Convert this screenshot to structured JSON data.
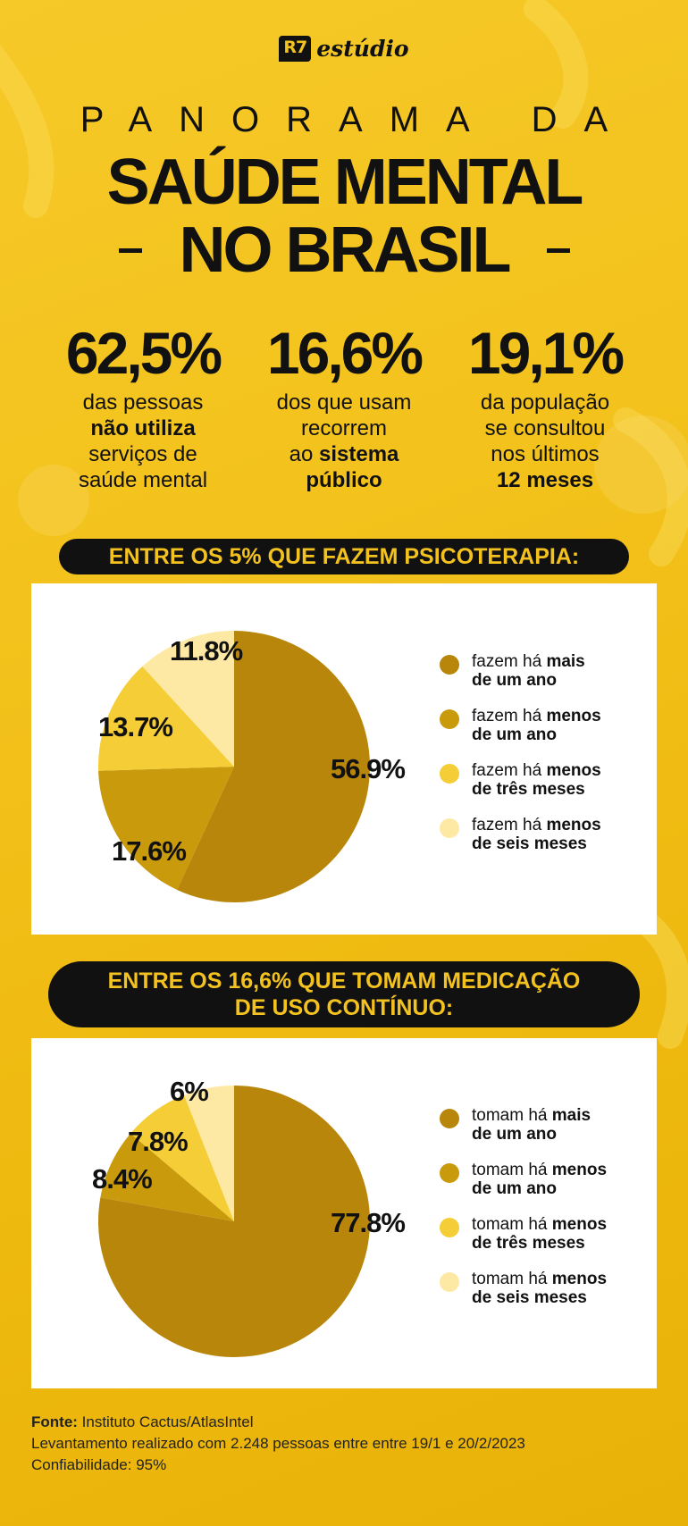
{
  "logo": {
    "badge": "R7",
    "text": "estúdio"
  },
  "title": {
    "line1": "PANORAMA DA",
    "line2": "SAÚDE MENTAL",
    "line3": "NO BRASIL"
  },
  "stats": [
    {
      "value": "62,5%",
      "lines": [
        "das pessoas",
        "não utiliza",
        "serviços de",
        "saúde mental"
      ],
      "bold": [
        false,
        true,
        false,
        false
      ]
    },
    {
      "value": "16,6%",
      "lines": [
        "dos que usam",
        "recorrem",
        "ao ",
        "público"
      ],
      "bold": [
        false,
        false,
        false,
        true
      ],
      "bold_inline": "sistema"
    },
    {
      "value": "19,1%",
      "lines": [
        "da população",
        "se consultou",
        "nos últimos",
        "12 meses"
      ],
      "bold": [
        false,
        false,
        false,
        true
      ]
    }
  ],
  "sections": [
    {
      "heading": [
        "ENTRE OS 5% QUE FAZEM PSICOTERAPIA:"
      ]
    },
    {
      "heading": [
        "ENTRE OS 16,6% QUE TOMAM MEDICAÇÃO",
        "DE USO CONTÍNUO:"
      ]
    }
  ],
  "chart_data": [
    {
      "type": "pie",
      "title": "ENTRE OS 5% QUE FAZEM PSICOTERAPIA:",
      "labels": [
        "fazem há mais de um ano",
        "fazem há menos de um ano",
        "fazem há menos de três meses",
        "fazem há menos de seis meses"
      ],
      "legend": [
        {
          "normal": "fazem há ",
          "bold": "mais",
          "line2": "de um ano"
        },
        {
          "normal": "fazem há ",
          "bold": "menos",
          "line2": "de um ano"
        },
        {
          "normal": "fazem há ",
          "bold": "menos",
          "line2": "de três meses"
        },
        {
          "normal": "fazem há ",
          "bold": "menos",
          "line2": "de seis meses"
        }
      ],
      "values": [
        56.9,
        17.6,
        13.7,
        11.8
      ],
      "value_labels": [
        "56.9%",
        "17.6%",
        "13.7%",
        "11.8%"
      ],
      "colors": [
        "#b8860b",
        "#c99a0c",
        "#f5cd36",
        "#fde9a3"
      ],
      "legend_position": "right"
    },
    {
      "type": "pie",
      "title": "ENTRE OS 16,6% QUE TOMAM MEDICAÇÃO DE USO CONTÍNUO:",
      "labels": [
        "tomam há mais de um ano",
        "tomam há menos de um ano",
        "tomam há menos de três meses",
        "tomam há menos de seis meses"
      ],
      "legend": [
        {
          "normal": "tomam há ",
          "bold": "mais",
          "line2": "de um ano"
        },
        {
          "normal": "tomam há ",
          "bold": "menos",
          "line2": "de um ano"
        },
        {
          "normal": "tomam há ",
          "bold": "menos",
          "line2": "de três meses"
        },
        {
          "normal": "tomam há ",
          "bold": "menos",
          "line2": "de seis meses"
        }
      ],
      "values": [
        77.8,
        8.4,
        7.8,
        6
      ],
      "value_labels": [
        "77.8%",
        "8.4%",
        "7.8%",
        "6%"
      ],
      "colors": [
        "#b8860b",
        "#c99a0c",
        "#f5cd36",
        "#fde9a3"
      ],
      "legend_position": "right"
    }
  ],
  "footer": {
    "source_label": "Fonte:",
    "source_text": " Instituto Cactus/AtlasIntel",
    "line2": "Levantamento realizado com 2.248 pessoas entre entre 19/1 e 20/2/2023",
    "line3": "Confiabilidade: 95%"
  }
}
